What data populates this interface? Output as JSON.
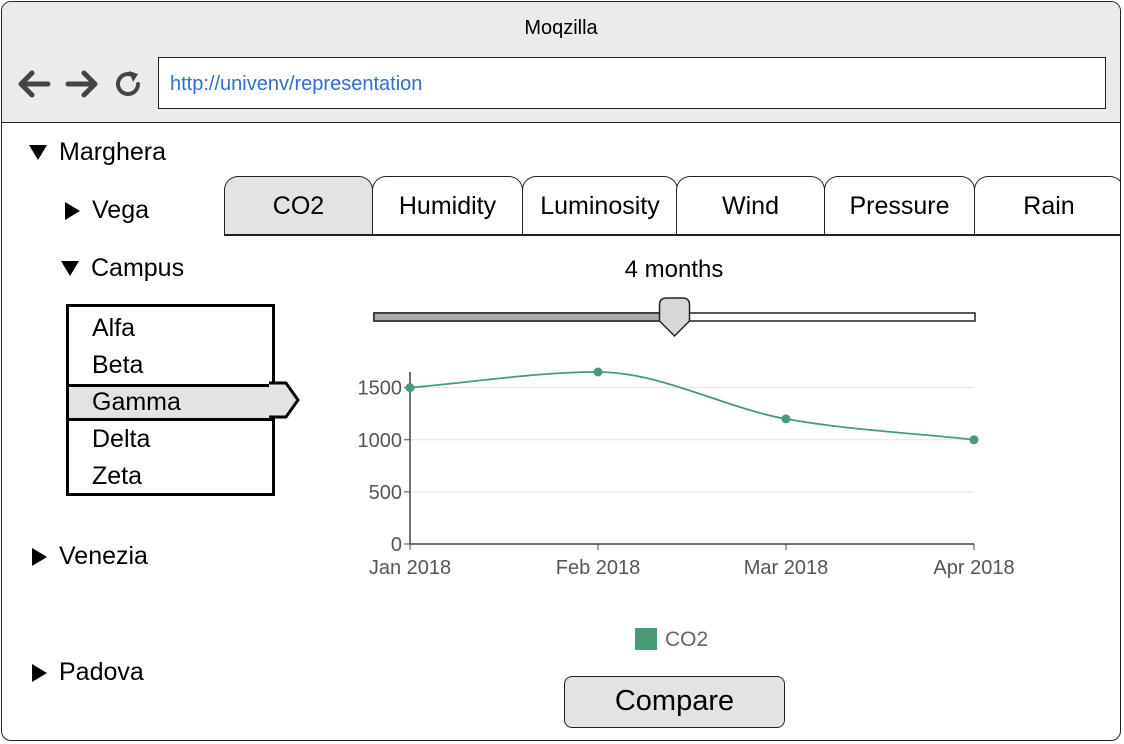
{
  "window": {
    "title": "Moqzilla"
  },
  "browser": {
    "url": "http://univenv/representation"
  },
  "tree": {
    "marghera": "Marghera",
    "vega": "Vega",
    "campus": "Campus",
    "campus_items": [
      "Alfa",
      "Beta",
      "Gamma",
      "Delta",
      "Zeta"
    ],
    "selected_item": "Gamma",
    "venezia": "Venezia",
    "padova": "Padova"
  },
  "tabs": [
    "CO2",
    "Humidity",
    "Luminosity",
    "Wind",
    "Pressure",
    "Rain"
  ],
  "active_tab": "CO2",
  "slider": {
    "label": "4 months",
    "value_fraction": 0.5
  },
  "chart_data": {
    "type": "line",
    "categories": [
      "Jan 2018",
      "Feb 2018",
      "Mar 2018",
      "Apr 2018"
    ],
    "series": [
      {
        "name": "CO2",
        "values": [
          1500,
          1650,
          1200,
          1000
        ],
        "color": "#4a9a78"
      }
    ],
    "yticks": [
      0,
      500,
      1000,
      1500
    ],
    "ylim": [
      0,
      1650
    ],
    "grid": true,
    "legend": "bottom"
  },
  "compare_label": "Compare"
}
